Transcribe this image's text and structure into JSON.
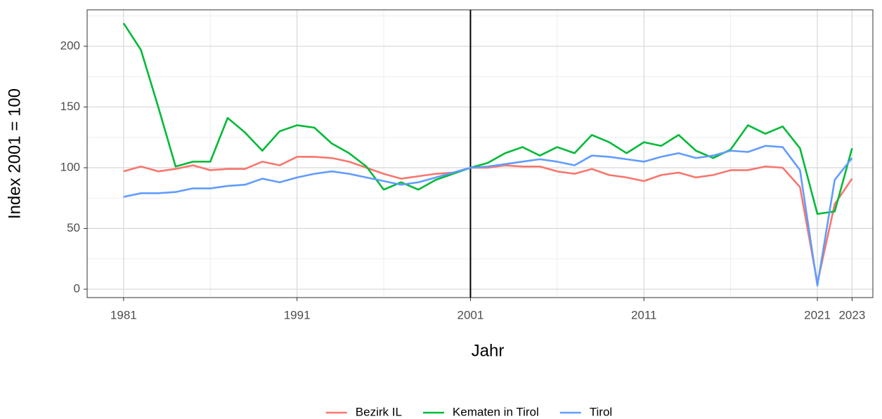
{
  "chart_data": {
    "type": "line",
    "x_label": "Jahr",
    "y_label": "Index 2001 = 100",
    "x": [
      1981,
      1982,
      1983,
      1984,
      1985,
      1986,
      1987,
      1988,
      1989,
      1990,
      1991,
      1992,
      1993,
      1994,
      1995,
      1996,
      1997,
      1998,
      1999,
      2000,
      2001,
      2002,
      2003,
      2004,
      2005,
      2006,
      2007,
      2008,
      2009,
      2010,
      2011,
      2012,
      2013,
      2014,
      2015,
      2016,
      2017,
      2018,
      2019,
      2020,
      2021,
      2022,
      2023
    ],
    "series": [
      {
        "name": "Bezirk IL",
        "color": "#F8766D",
        "values": [
          97,
          101,
          97,
          99,
          102,
          98,
          99,
          99,
          105,
          102,
          109,
          109,
          108,
          105,
          100,
          95,
          91,
          93,
          95,
          96,
          100,
          100,
          102,
          101,
          101,
          97,
          95,
          99,
          94,
          92,
          89,
          94,
          96,
          92,
          94,
          98,
          98,
          101,
          100,
          84,
          5,
          70,
          91
        ]
      },
      {
        "name": "Kematen in Tirol",
        "color": "#00BA38",
        "values": [
          219,
          197,
          150,
          101,
          105,
          105,
          141,
          129,
          114,
          130,
          135,
          133,
          120,
          112,
          101,
          82,
          88,
          82,
          90,
          95,
          100,
          104,
          112,
          117,
          110,
          117,
          112,
          127,
          121,
          112,
          121,
          118,
          127,
          114,
          108,
          115,
          135,
          128,
          134,
          116,
          62,
          64,
          116
        ]
      },
      {
        "name": "Tirol",
        "color": "#619CFF",
        "values": [
          76,
          79,
          79,
          80,
          83,
          83,
          85,
          86,
          91,
          88,
          92,
          95,
          97,
          95,
          92,
          89,
          86,
          88,
          92,
          96,
          100,
          101,
          103,
          105,
          107,
          105,
          102,
          110,
          109,
          107,
          105,
          109,
          112,
          108,
          110,
          114,
          113,
          118,
          117,
          98,
          3,
          90,
          108
        ]
      }
    ],
    "xlim": [
      1978.9,
      2024.2
    ],
    "xticks": [
      1981,
      1991,
      2001,
      2011,
      2021,
      2023
    ],
    "ylim": [
      -6.9,
      230
    ],
    "yticks": [
      0,
      50,
      100,
      150,
      200
    ],
    "vline": 2001,
    "grid": true,
    "minor_grid": true,
    "legend": "bottom"
  }
}
